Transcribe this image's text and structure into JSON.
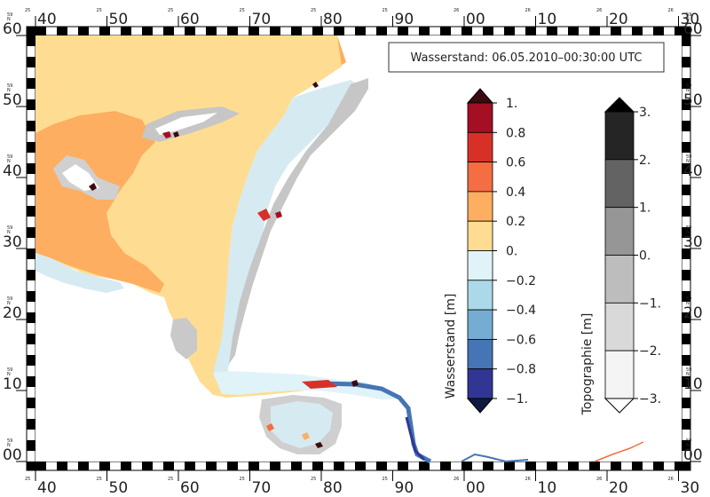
{
  "title": "Wasserstand: 06.05.2010–00:30:00 UTC",
  "frame": {
    "x_major_labels": [
      "40",
      "50",
      "60",
      "70",
      "80",
      "90",
      "00",
      "10",
      "20",
      "30"
    ],
    "x_minor_labels": [
      "25",
      "25",
      "25",
      "25",
      "25",
      "25",
      "26",
      "26",
      "26",
      "26"
    ],
    "y_labels": [
      "00",
      "10",
      "20",
      "30",
      "40",
      "50",
      "60"
    ],
    "y_minor_label": "59",
    "y_sub_label": "N"
  },
  "wasserstand": {
    "label": "Wasserstand [m]",
    "ticks": [
      "1.",
      "0.8",
      "0.6",
      "0.4",
      "0.2",
      "0.",
      "−0.2",
      "−0.4",
      "−0.6",
      "−0.8",
      "−1."
    ],
    "colors": [
      "#a50f23",
      "#d73127",
      "#f46d43",
      "#fdae61",
      "#fedd92",
      "#e0f3f8",
      "#abd9e9",
      "#74add1",
      "#4575b4",
      "#313695"
    ],
    "over_color": "#3d0a10",
    "under_color": "#101a40"
  },
  "topographie": {
    "label": "Topographie [m]",
    "ticks": [
      "3.",
      "2.",
      "1.",
      "0.",
      "−1.",
      "−2.",
      "−3."
    ],
    "colors": [
      "#252525",
      "#636363",
      "#969696",
      "#bdbdbd",
      "#d9d9d9",
      "#f4f4f4"
    ],
    "over_color": "#000000",
    "under_color": "#ffffff"
  }
}
